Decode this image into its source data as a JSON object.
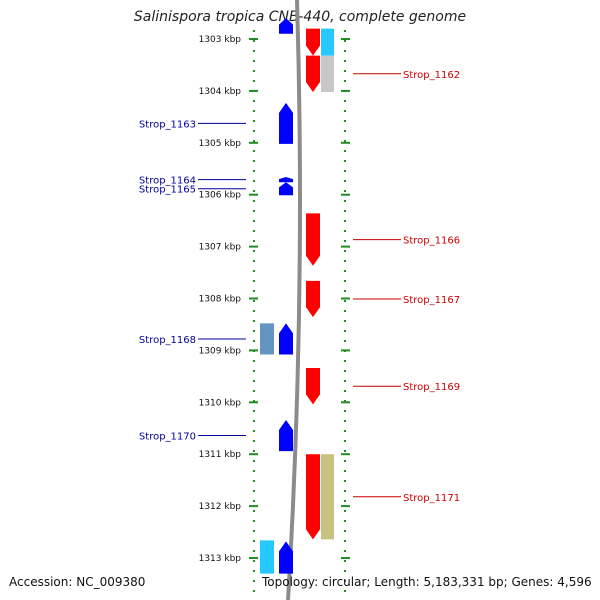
{
  "title": "Salinispora tropica CNB-440, complete genome",
  "accession": "Accession: NC_009380",
  "genome_stats": "Topology: circular; Length: 5,183,331 bp; Genes: 4,596",
  "colors": {
    "plus_strand": "#ff0000",
    "minus_strand": "#0000ff",
    "backbone": "#8c8c8c",
    "ruler_dots": "#228b22",
    "plus_label": "#cc0000",
    "minus_label": "#000099"
  },
  "ruler": {
    "unit": "kbp",
    "ticks": [
      {
        "label": "1303 kbp",
        "kbp": 1303
      },
      {
        "label": "1304 kbp",
        "kbp": 1304
      },
      {
        "label": "1305 kbp",
        "kbp": 1305
      },
      {
        "label": "1306 kbp",
        "kbp": 1306
      },
      {
        "label": "1307 kbp",
        "kbp": 1307
      },
      {
        "label": "1308 kbp",
        "kbp": 1308
      },
      {
        "label": "1309 kbp",
        "kbp": 1309
      },
      {
        "label": "1310 kbp",
        "kbp": 1310
      },
      {
        "label": "1311 kbp",
        "kbp": 1311
      },
      {
        "label": "1312 kbp",
        "kbp": 1312
      },
      {
        "label": "1313 kbp",
        "kbp": 1313
      }
    ]
  },
  "genes": [
    {
      "label": "Strop_1162",
      "strand": "plus",
      "start_kbp": 1303.32,
      "end_kbp": 1304.02,
      "color": "#ff0000"
    },
    {
      "label": "Strop_1163",
      "strand": "minus",
      "start_kbp": 1304.23,
      "end_kbp": 1305.02,
      "color": "#0000ff"
    },
    {
      "label": "Strop_1164",
      "strand": "minus",
      "start_kbp": 1305.66,
      "end_kbp": 1305.76,
      "color": "#0000ff"
    },
    {
      "label": "Strop_1165",
      "strand": "minus",
      "start_kbp": 1305.76,
      "end_kbp": 1306.01,
      "color": "#0000ff"
    },
    {
      "label": "Strop_1166",
      "strand": "plus",
      "start_kbp": 1306.36,
      "end_kbp": 1307.37,
      "color": "#ff0000"
    },
    {
      "label": "Strop_1167",
      "strand": "plus",
      "start_kbp": 1307.66,
      "end_kbp": 1308.36,
      "color": "#ff0000"
    },
    {
      "label": "Strop_1168",
      "strand": "minus",
      "start_kbp": 1308.48,
      "end_kbp": 1309.08,
      "color": "#0000ff"
    },
    {
      "label": "Strop_1169",
      "strand": "plus",
      "start_kbp": 1309.34,
      "end_kbp": 1310.04,
      "color": "#ff0000"
    },
    {
      "label": "Strop_1170",
      "strand": "minus",
      "start_kbp": 1310.34,
      "end_kbp": 1310.94,
      "color": "#0000ff"
    },
    {
      "label": "Strop_1171",
      "strand": "plus",
      "start_kbp": 1311.0,
      "end_kbp": 1312.64,
      "color": "#ff0000"
    }
  ],
  "extra_features": [
    {
      "kind": "gene",
      "strand": "plus",
      "start_kbp": 1302.8,
      "end_kbp": 1303.32,
      "color": "#ff0000"
    },
    {
      "kind": "cds",
      "strand": "plus-outer",
      "start_kbp": 1302.8,
      "end_kbp": 1303.32,
      "color": "#00bfff"
    },
    {
      "kind": "cds",
      "strand": "plus-outer",
      "start_kbp": 1303.32,
      "end_kbp": 1304.02,
      "color": "#bdbdbd"
    },
    {
      "kind": "cds",
      "strand": "minus-outer",
      "start_kbp": 1308.48,
      "end_kbp": 1309.08,
      "color": "#4682b4"
    },
    {
      "kind": "cds",
      "strand": "plus-outer",
      "start_kbp": 1311.0,
      "end_kbp": 1312.64,
      "color": "#bdb76b"
    },
    {
      "kind": "gene",
      "strand": "minus",
      "start_kbp": 1302.6,
      "end_kbp": 1302.9,
      "color": "#0000ff"
    },
    {
      "kind": "gene",
      "strand": "minus",
      "start_kbp": 1312.68,
      "end_kbp": 1313.3,
      "color": "#0000ff"
    },
    {
      "kind": "cds",
      "strand": "minus-outer",
      "start_kbp": 1312.66,
      "end_kbp": 1313.3,
      "color": "#00bfff"
    }
  ]
}
